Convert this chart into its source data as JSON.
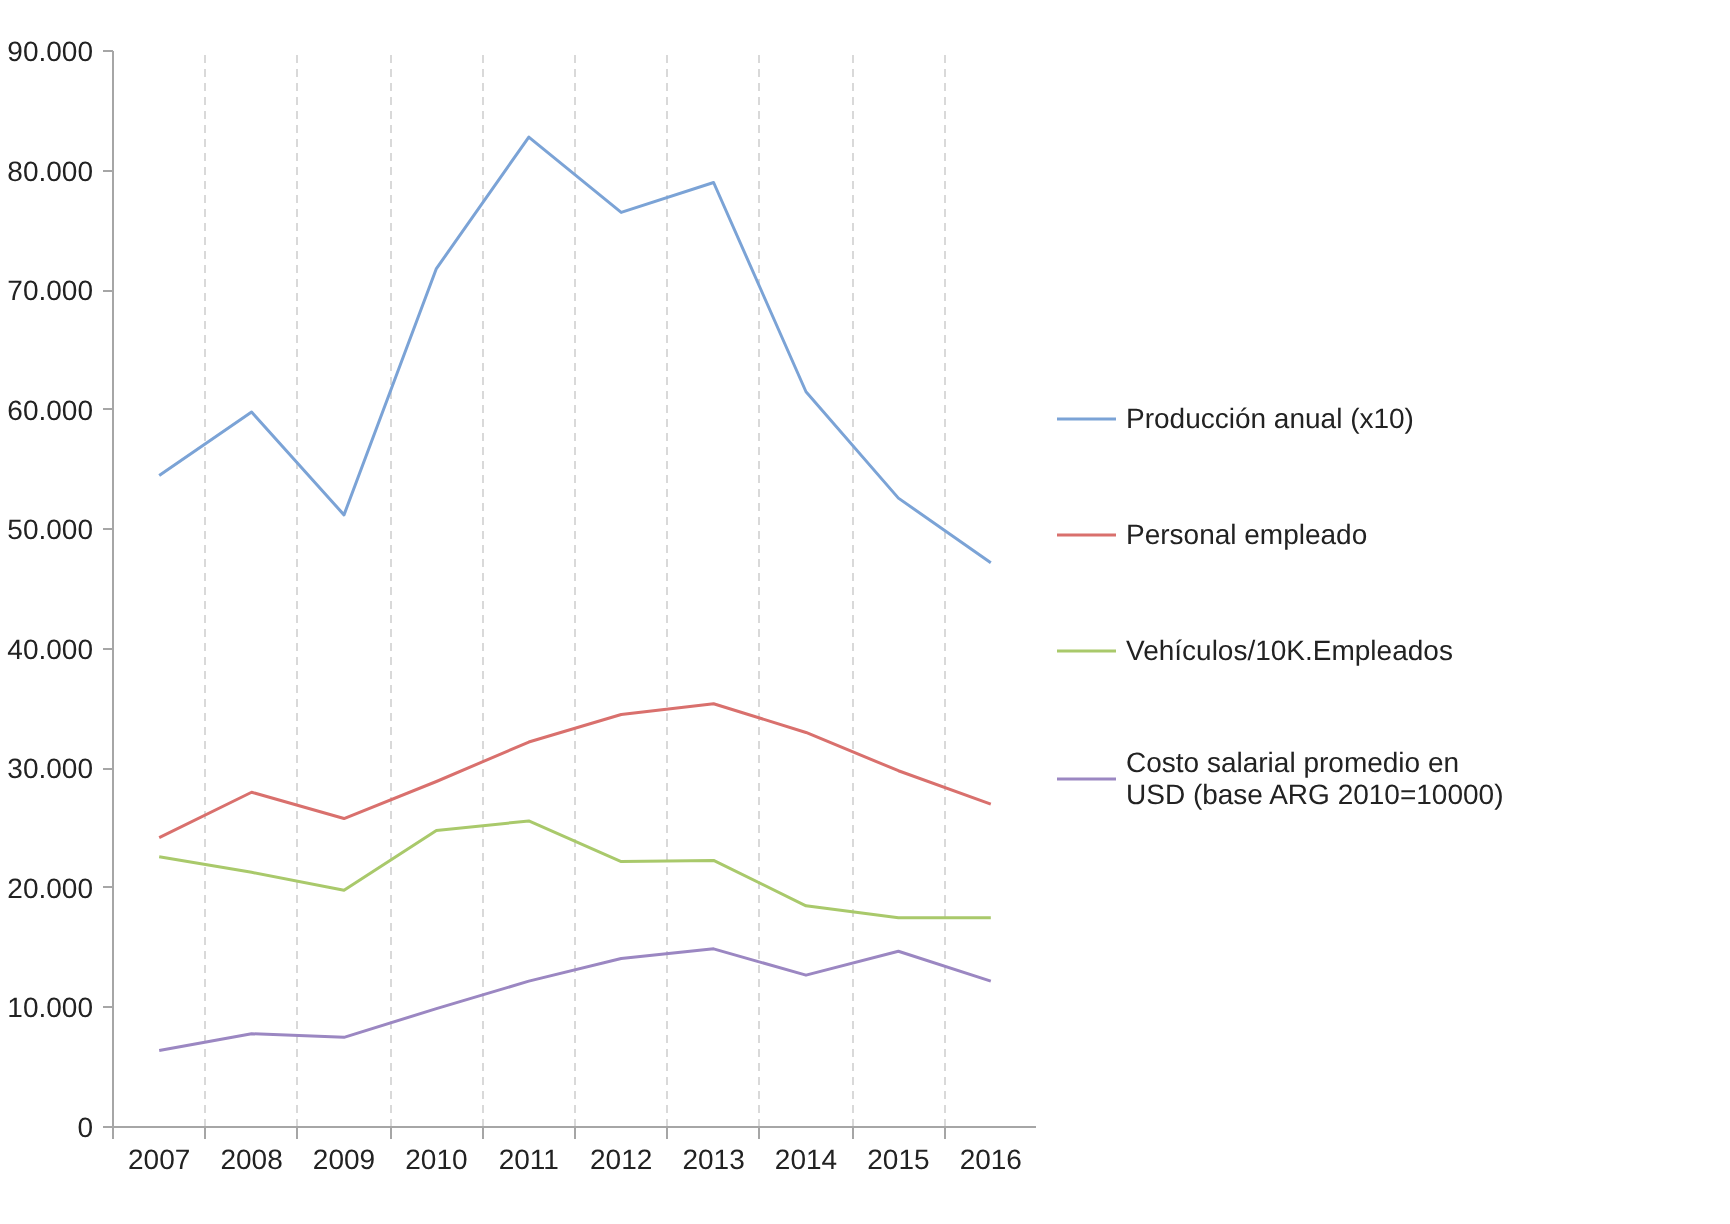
{
  "chart_data": {
    "type": "line",
    "categories": [
      "2007",
      "2008",
      "2009",
      "2010",
      "2011",
      "2012",
      "2013",
      "2014",
      "2015",
      "2016"
    ],
    "series": [
      {
        "name": "Producción anual (x10)",
        "color": "#7ba3d6",
        "values": [
          54500,
          59800,
          51200,
          71800,
          82800,
          76500,
          79000,
          61500,
          52600,
          47200
        ]
      },
      {
        "name": "Personal empleado",
        "color": "#d9706d",
        "values": [
          24200,
          28000,
          25800,
          28900,
          32200,
          34500,
          35400,
          33000,
          29800,
          27000
        ]
      },
      {
        "name": "Vehículos/10K.Empleados",
        "color": "#a9c96b",
        "values": [
          22600,
          21300,
          19800,
          24800,
          25600,
          22200,
          22300,
          18500,
          17500,
          17500
        ]
      },
      {
        "name": "Costo salarial promedio en USD (base ARG 2010=10000)",
        "color": "#9b87c2",
        "values": [
          6400,
          7800,
          7500,
          9900,
          12200,
          14100,
          14900,
          12700,
          14700,
          12200
        ]
      }
    ],
    "ylim": [
      0,
      90000
    ],
    "yticks": [
      0,
      {
        "value": 10000,
        "label": "10.000"
      },
      {
        "value": 20000,
        "label": "20.000"
      },
      {
        "value": 30000,
        "label": "30.000"
      },
      {
        "value": 40000,
        "label": "40.000"
      },
      {
        "value": 50000,
        "label": "50.000"
      },
      {
        "value": 60000,
        "label": "60.000"
      },
      {
        "value": 70000,
        "label": "70.000"
      },
      {
        "value": 80000,
        "label": "80.000"
      },
      {
        "value": 90000,
        "label": "90.000"
      }
    ],
    "grid": "x",
    "legend": "right",
    "line_style": "solid",
    "marker": "none"
  }
}
